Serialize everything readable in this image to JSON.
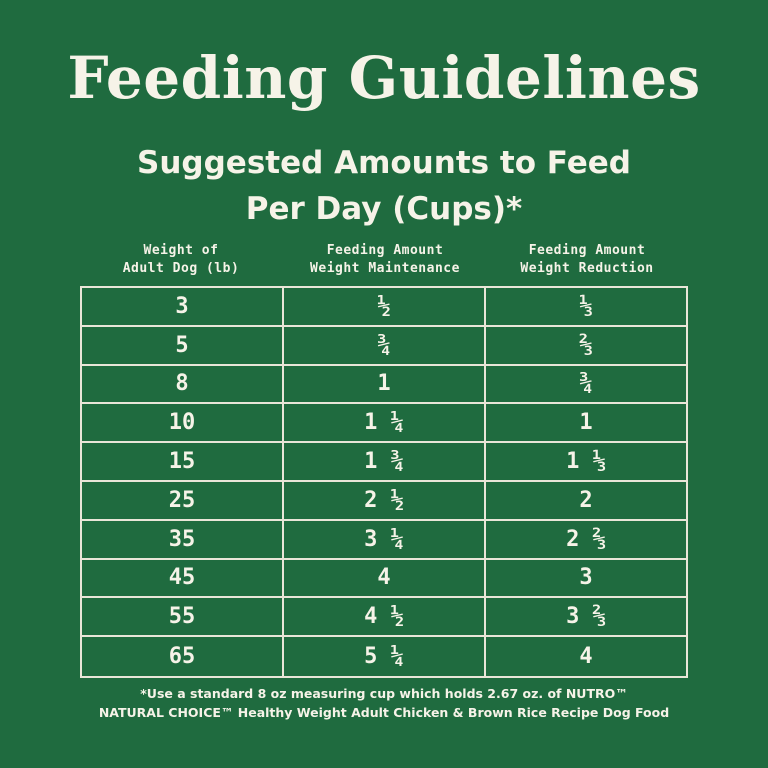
{
  "title": "Feeding Guidelines",
  "subtitle_line1": "Suggested Amounts to Feed",
  "subtitle_line2": "Per Day (Cups)*",
  "columns": [
    {
      "line1": "Weight of",
      "line2": "Adult Dog (lb)"
    },
    {
      "line1": "Feeding Amount",
      "line2": "Weight Maintenance"
    },
    {
      "line1": "Feeding Amount",
      "line2": "Weight Reduction"
    }
  ],
  "rows": [
    {
      "weight": "3",
      "maintenance": "½",
      "reduction": "⅓"
    },
    {
      "weight": "5",
      "maintenance": "¾",
      "reduction": "⅔"
    },
    {
      "weight": "8",
      "maintenance": "1",
      "reduction": "¾"
    },
    {
      "weight": "10",
      "maintenance": "1 ¼",
      "reduction": "1"
    },
    {
      "weight": "15",
      "maintenance": "1 ¾",
      "reduction": "1 ⅓"
    },
    {
      "weight": "25",
      "maintenance": "2 ½",
      "reduction": "2"
    },
    {
      "weight": "35",
      "maintenance": "3 ¼",
      "reduction": "2 ⅔"
    },
    {
      "weight": "45",
      "maintenance": "4",
      "reduction": "3"
    },
    {
      "weight": "55",
      "maintenance": "4 ½",
      "reduction": "3 ⅔"
    },
    {
      "weight": "65",
      "maintenance": "5 ¼",
      "reduction": "4"
    }
  ],
  "footnote_line1": "*Use a standard 8 oz measuring cup which holds 2.67 oz. of NUTRO™",
  "footnote_line2": "NATURAL CHOICE™ Healthy Weight Adult Chicken & Brown Rice Recipe Dog Food",
  "colors": {
    "background": "#1f6b3f",
    "text": "#f6f3e8",
    "grid": "#e9e6d8"
  }
}
